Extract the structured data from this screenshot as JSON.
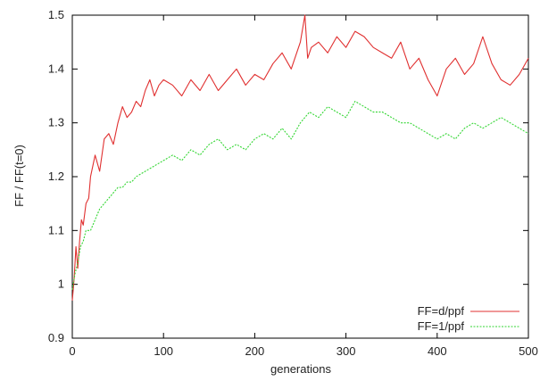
{
  "chart_data": {
    "type": "line",
    "title": "",
    "xlabel": "generations",
    "ylabel": "FF / FF(t=0)",
    "xlim": [
      0,
      500
    ],
    "ylim": [
      0.9,
      1.5
    ],
    "x_ticks": [
      0,
      100,
      200,
      300,
      400,
      500
    ],
    "x_tick_labels": [
      "0",
      "100",
      "200",
      "300",
      "400",
      "500"
    ],
    "y_ticks": [
      0.9,
      1,
      1.1,
      1.2,
      1.3,
      1.4,
      1.5
    ],
    "y_tick_labels": [
      "0.9",
      "1",
      "1.1",
      "1.2",
      "1.3",
      "1.4",
      "1.5"
    ],
    "grid": false,
    "legend_position": "bottom-right",
    "series": [
      {
        "name": "FF=d/ppf",
        "color": "#e03030",
        "dash": "solid",
        "x": [
          0,
          2,
          4,
          6,
          8,
          10,
          12,
          15,
          18,
          20,
          25,
          30,
          35,
          40,
          45,
          50,
          55,
          60,
          65,
          70,
          75,
          80,
          85,
          90,
          95,
          100,
          110,
          120,
          130,
          140,
          150,
          160,
          170,
          180,
          190,
          200,
          210,
          220,
          230,
          240,
          250,
          255,
          258,
          262,
          270,
          280,
          290,
          300,
          310,
          320,
          330,
          340,
          350,
          360,
          370,
          380,
          390,
          400,
          410,
          420,
          430,
          440,
          450,
          460,
          470,
          480,
          490,
          500
        ],
        "y": [
          0.97,
          1.01,
          1.07,
          1.03,
          1.08,
          1.12,
          1.11,
          1.15,
          1.16,
          1.2,
          1.24,
          1.21,
          1.27,
          1.28,
          1.26,
          1.3,
          1.33,
          1.31,
          1.32,
          1.34,
          1.33,
          1.36,
          1.38,
          1.35,
          1.37,
          1.38,
          1.37,
          1.35,
          1.38,
          1.36,
          1.39,
          1.36,
          1.38,
          1.4,
          1.37,
          1.39,
          1.38,
          1.41,
          1.43,
          1.4,
          1.45,
          1.5,
          1.42,
          1.44,
          1.45,
          1.43,
          1.46,
          1.44,
          1.47,
          1.46,
          1.44,
          1.43,
          1.42,
          1.45,
          1.4,
          1.42,
          1.38,
          1.35,
          1.4,
          1.42,
          1.39,
          1.41,
          1.46,
          1.41,
          1.38,
          1.37,
          1.39,
          1.42
        ]
      },
      {
        "name": "FF=1/ppf",
        "color": "#33d633",
        "dash": "dotted",
        "x": [
          0,
          3,
          6,
          9,
          12,
          15,
          20,
          25,
          30,
          35,
          40,
          45,
          50,
          55,
          60,
          65,
          70,
          80,
          90,
          100,
          110,
          120,
          130,
          140,
          150,
          160,
          170,
          180,
          190,
          200,
          210,
          220,
          230,
          240,
          250,
          260,
          270,
          280,
          290,
          300,
          310,
          320,
          330,
          340,
          350,
          360,
          370,
          380,
          390,
          400,
          410,
          420,
          430,
          440,
          450,
          460,
          470,
          480,
          490,
          500
        ],
        "y": [
          0.99,
          1.02,
          1.04,
          1.07,
          1.08,
          1.1,
          1.1,
          1.12,
          1.14,
          1.15,
          1.16,
          1.17,
          1.18,
          1.18,
          1.19,
          1.19,
          1.2,
          1.21,
          1.22,
          1.23,
          1.24,
          1.23,
          1.25,
          1.24,
          1.26,
          1.27,
          1.25,
          1.26,
          1.25,
          1.27,
          1.28,
          1.27,
          1.29,
          1.27,
          1.3,
          1.32,
          1.31,
          1.33,
          1.32,
          1.31,
          1.34,
          1.33,
          1.32,
          1.32,
          1.31,
          1.3,
          1.3,
          1.29,
          1.28,
          1.27,
          1.28,
          1.27,
          1.29,
          1.3,
          1.29,
          1.3,
          1.31,
          1.3,
          1.29,
          1.28
        ]
      }
    ]
  }
}
